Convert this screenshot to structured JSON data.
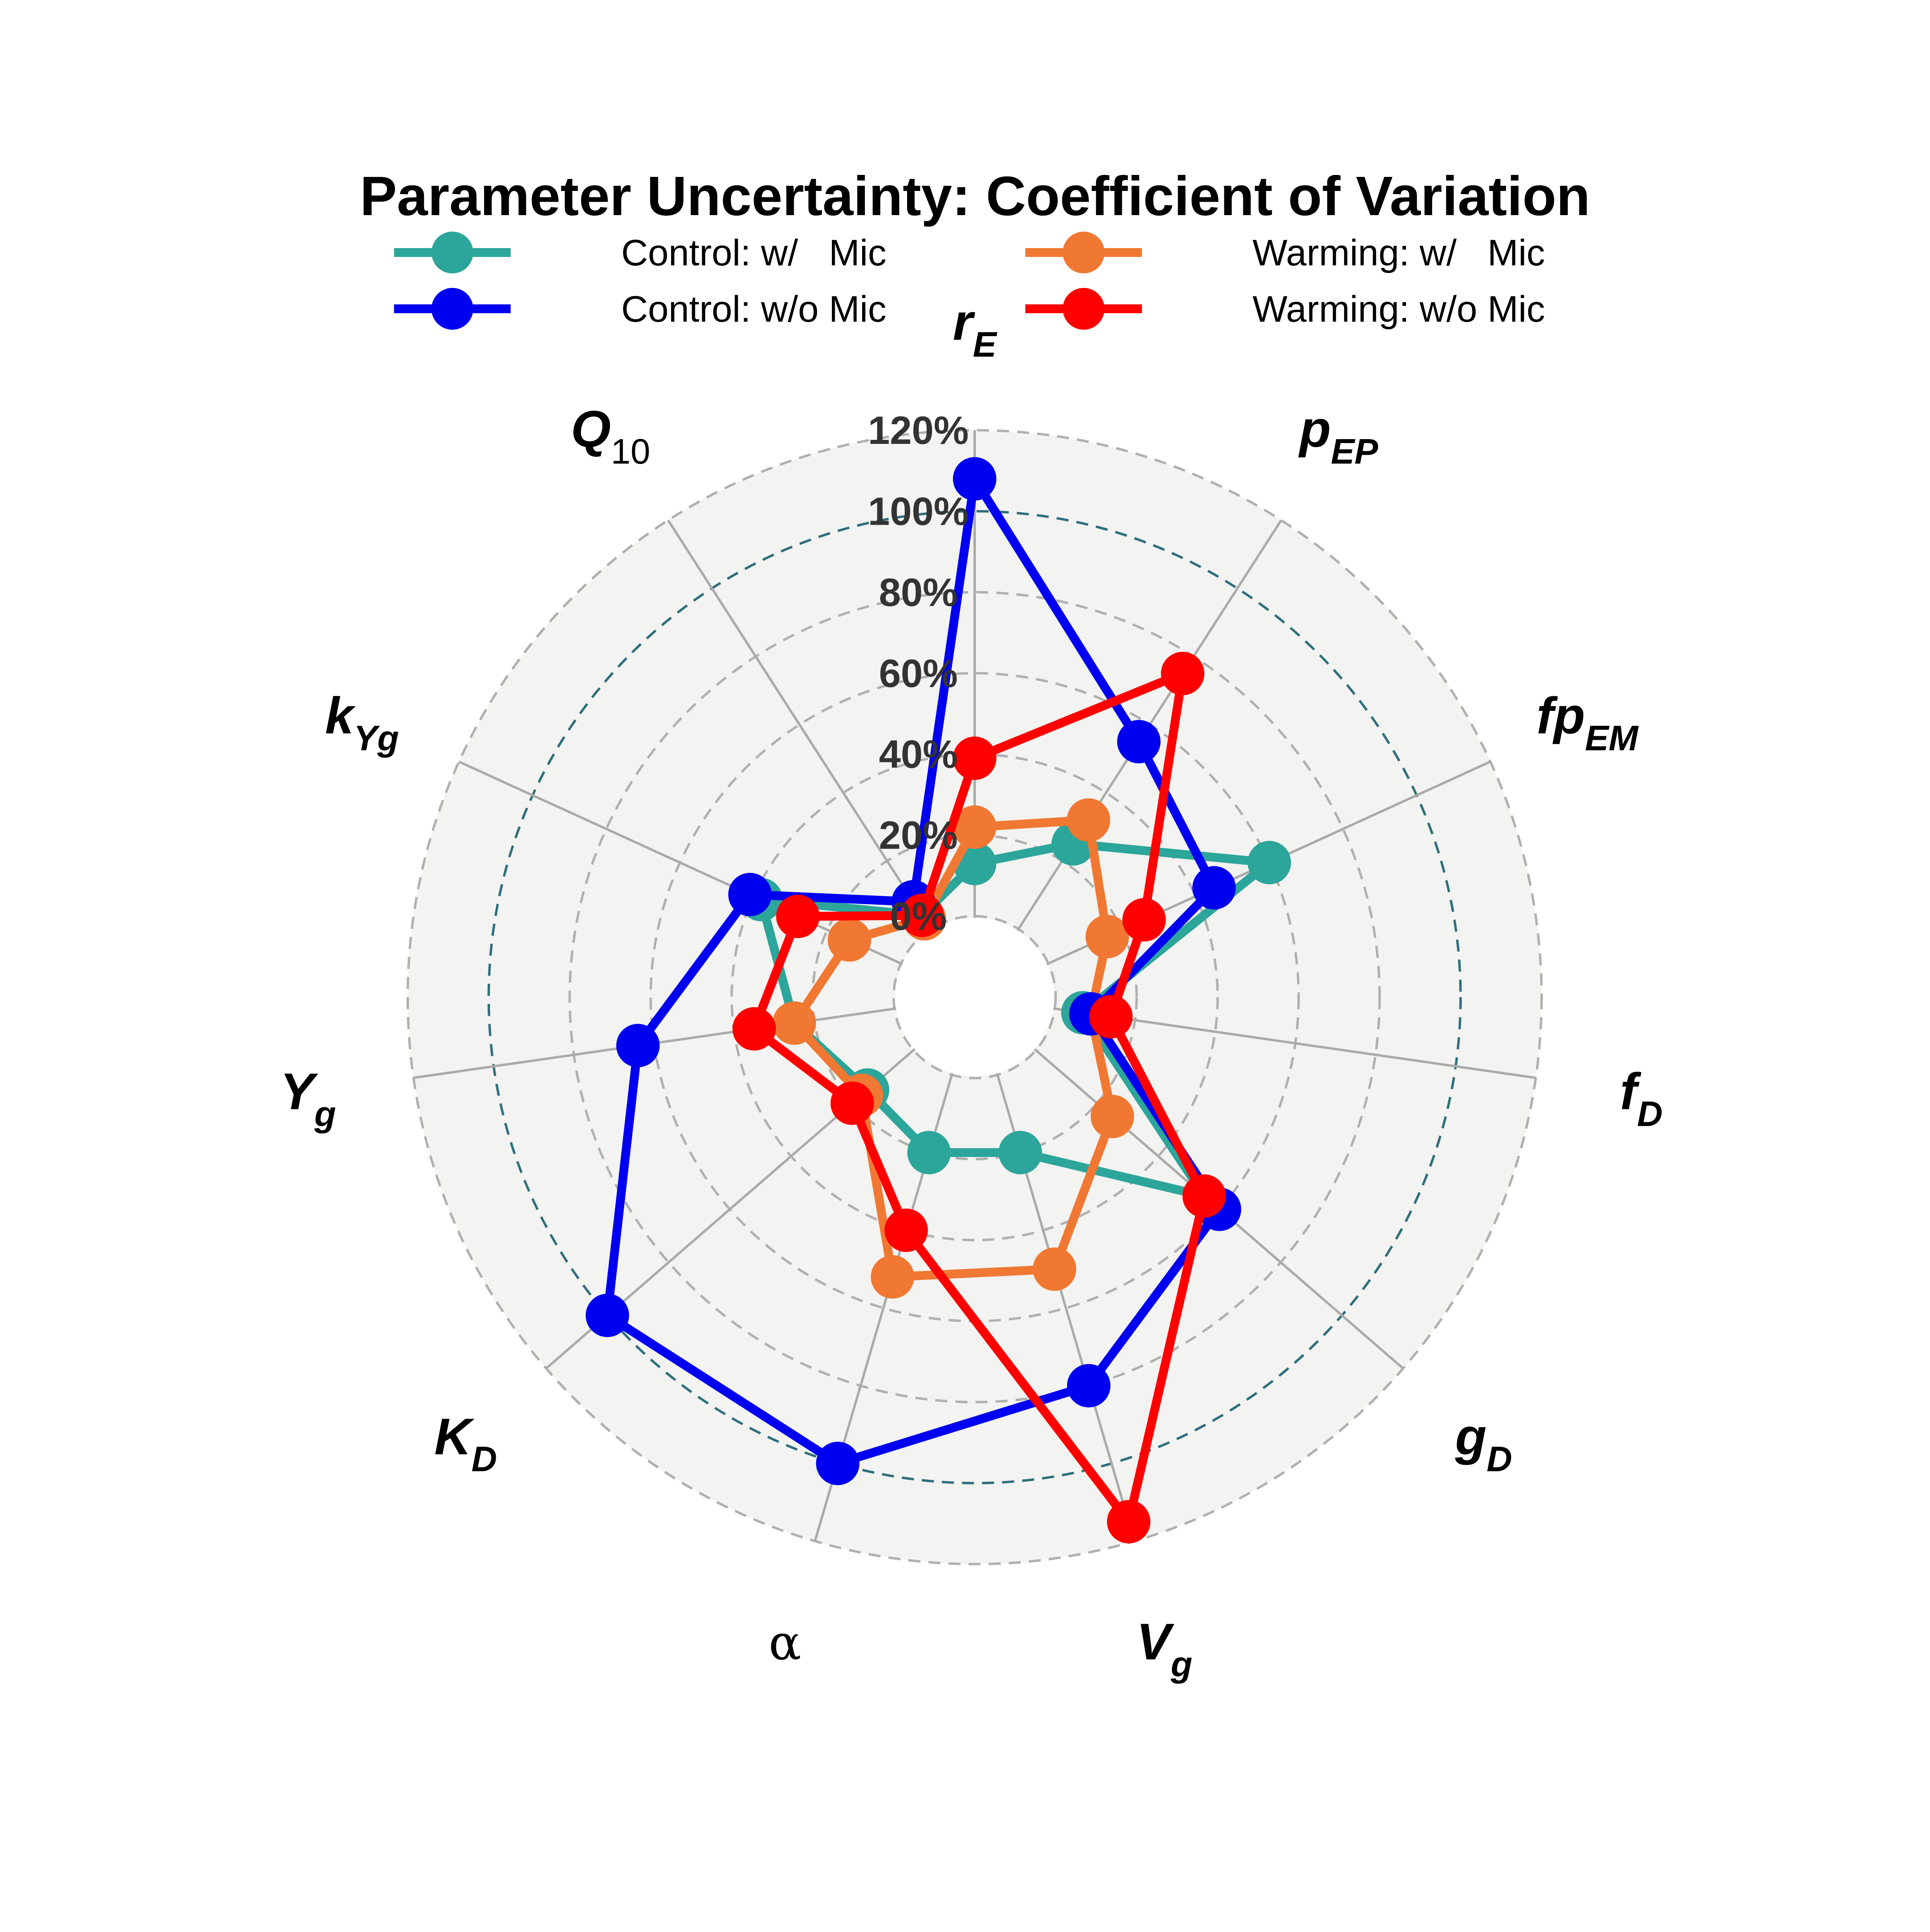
{
  "chart_data": {
    "type": "radar",
    "title": "Parameter Uncertainty: Coefficient of Variation",
    "axes": [
      {
        "base": "r",
        "sub": "E"
      },
      {
        "base": "p",
        "sub": "EP"
      },
      {
        "base": "fp",
        "sub": "EM"
      },
      {
        "base": "f",
        "sub": "D"
      },
      {
        "base": "g",
        "sub": "D"
      },
      {
        "base": "V",
        "sub": "g"
      },
      {
        "base": "α",
        "sub": ""
      },
      {
        "base": "K",
        "sub": "D"
      },
      {
        "base": "Y",
        "sub": "g"
      },
      {
        "base": "k",
        "sub": "Yg"
      },
      {
        "base": "Q",
        "sub": "10"
      }
    ],
    "radial_ticks": [
      "0%",
      "20%",
      "40%",
      "60%",
      "80%",
      "100%",
      "120%"
    ],
    "radial_tick_values": [
      0,
      20,
      40,
      60,
      80,
      100,
      120
    ],
    "rlim": [
      -20,
      120
    ],
    "reference_ring": 100,
    "grid": true,
    "legend_position": "top",
    "series": [
      {
        "name": "Control: w/   Mic",
        "color": "#2ca59a",
        "values": [
          13,
          25,
          60,
          7,
          55,
          20,
          20,
          15,
          25,
          38,
          4
        ]
      },
      {
        "name": "Warming: w/   Mic",
        "color": "#f07832",
        "values": [
          22,
          32,
          16,
          9,
          25,
          50,
          52,
          17,
          25,
          14,
          3
        ]
      },
      {
        "name": "Control: w/o Mic",
        "color": "#0000f0",
        "values": [
          108,
          55,
          45,
          9,
          60,
          80,
          100,
          100,
          64,
          41,
          8
        ]
      },
      {
        "name": "Warming: w/o Mic",
        "color": "#ff0000",
        "values": [
          39,
          75,
          26,
          14,
          55,
          115,
          40,
          20,
          35,
          28,
          4
        ]
      }
    ]
  }
}
